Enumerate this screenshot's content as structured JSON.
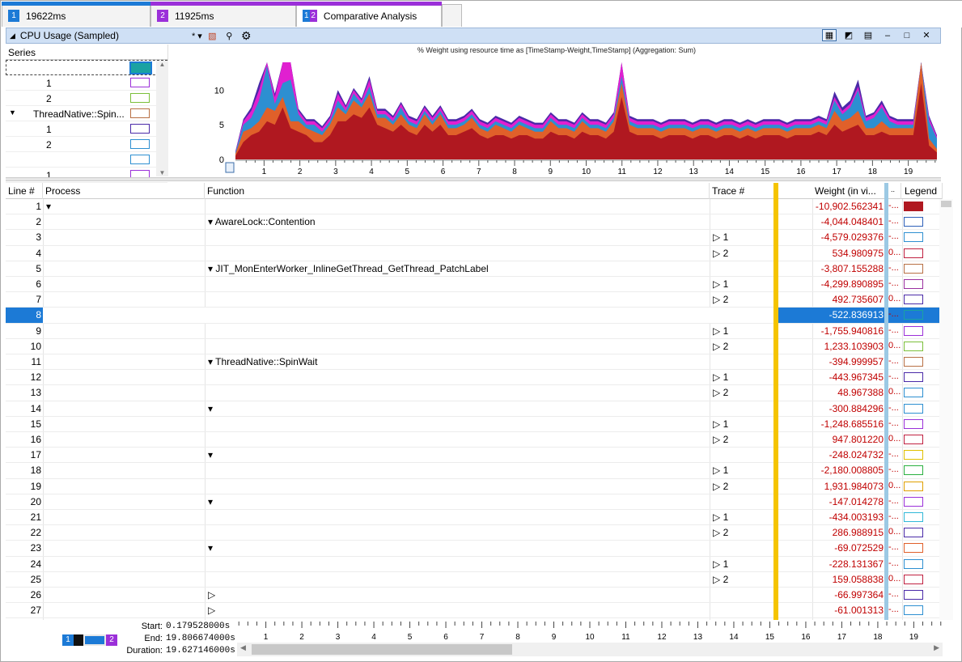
{
  "tabs": [
    {
      "num": "1",
      "label": "19622ms",
      "color": "#1c7ad6"
    },
    {
      "num": "2",
      "label": "11925ms",
      "color": "#9b30d9"
    },
    {
      "num": "1 2",
      "label": "Comparative Analysis",
      "color": "#9b30d9"
    }
  ],
  "panel": {
    "title": "CPU Usage (Sampled)",
    "preset": "*"
  },
  "series": {
    "header": "Series",
    "rows": [
      {
        "label": "",
        "swatch": "#1aa2a2",
        "indent": 0,
        "expander": false
      },
      {
        "label": "1",
        "swatch": "#9b30d9",
        "indent": 1,
        "expander": false
      },
      {
        "label": "2",
        "swatch": "#7bbf3a",
        "indent": 1,
        "expander": false
      },
      {
        "label": "ThreadNative::Spin...",
        "swatch": "#b87044",
        "indent": 0,
        "expander": true
      },
      {
        "label": "1",
        "swatch": "#4a2aa8",
        "indent": 1,
        "expander": false
      },
      {
        "label": "2",
        "swatch": "#2d8fd1",
        "indent": 1,
        "expander": false
      },
      {
        "label": "",
        "swatch": "#2d8fd1",
        "indent": 0,
        "expander": false
      },
      {
        "label": "1",
        "swatch": "#9b30d9",
        "indent": 1,
        "expander": false
      }
    ]
  },
  "chart_data": {
    "type": "area",
    "title": "% Weight using resource time as [TimeStamp-Weight,TimeStamp] (Aggregation: Sum)",
    "xlim": [
      0.2,
      19.8
    ],
    "ylim": [
      0,
      14
    ],
    "xticks": [
      "1",
      "2",
      "3",
      "4",
      "5",
      "6",
      "7",
      "8",
      "9",
      "10",
      "11",
      "12",
      "13",
      "14",
      "15",
      "16",
      "17",
      "18",
      "19"
    ],
    "yticks": [
      "0",
      "5",
      "10"
    ],
    "series": [
      {
        "color": "#b01820",
        "values": [
          0.5,
          2.5,
          3.5,
          4.0,
          5.5,
          5.0,
          7.5,
          4.5,
          4.0,
          3.5,
          2.5,
          2.5,
          3.5,
          5.5,
          5.5,
          6.5,
          6.0,
          7.5,
          5.0,
          4.5,
          4.0,
          5.0,
          4.0,
          3.5,
          5.0,
          4.0,
          5.0,
          3.5,
          3.5,
          4.0,
          4.5,
          3.5,
          3.0,
          3.5,
          3.5,
          3.0,
          3.5,
          3.5,
          3.0,
          3.0,
          4.0,
          3.5,
          3.5,
          3.0,
          4.0,
          3.5,
          3.5,
          3.0,
          4.0,
          9.0,
          4.0,
          3.5,
          3.5,
          3.5,
          3.0,
          3.5,
          3.5,
          3.5,
          3.0,
          3.5,
          3.5,
          3.0,
          3.5,
          3.5,
          3.0,
          3.5,
          3.0,
          3.5,
          3.5,
          3.5,
          3.0,
          3.5,
          3.5,
          3.5,
          4.0,
          3.5,
          5.0,
          4.0,
          4.5,
          5.0,
          3.5,
          3.5,
          4.0,
          3.5,
          3.5,
          3.5,
          3.5,
          11.0,
          2.0,
          1.0
        ]
      },
      {
        "color": "#e0602a",
        "values": [
          0.3,
          1.5,
          1.0,
          1.5,
          2.0,
          2.0,
          1.5,
          1.0,
          1.5,
          1.0,
          1.5,
          1.0,
          1.5,
          2.0,
          1.0,
          2.0,
          1.5,
          2.0,
          1.0,
          1.5,
          1.0,
          1.5,
          1.0,
          1.0,
          1.5,
          1.0,
          1.5,
          1.0,
          1.0,
          1.0,
          1.5,
          1.0,
          1.0,
          1.5,
          1.0,
          1.0,
          1.5,
          1.0,
          1.0,
          1.0,
          1.5,
          1.0,
          1.0,
          1.0,
          1.5,
          1.0,
          1.0,
          1.0,
          1.5,
          2.0,
          1.0,
          1.0,
          1.0,
          1.0,
          1.0,
          1.0,
          1.0,
          1.0,
          1.0,
          1.0,
          1.0,
          1.0,
          1.0,
          1.0,
          1.0,
          1.0,
          1.0,
          1.0,
          1.0,
          1.0,
          1.0,
          1.0,
          1.0,
          1.0,
          1.0,
          1.0,
          2.0,
          1.5,
          1.5,
          2.0,
          1.0,
          1.0,
          1.5,
          1.0,
          1.0,
          1.0,
          1.0,
          3.0,
          1.0,
          0.5
        ]
      },
      {
        "color": "#2d8fd1",
        "values": [
          0.2,
          1.0,
          1.5,
          3.0,
          6.0,
          1.0,
          2.0,
          6.0,
          1.0,
          0.5,
          1.0,
          0.5,
          0.5,
          1.0,
          0.5,
          1.0,
          0.5,
          1.0,
          0.5,
          0.5,
          0.5,
          1.0,
          0.5,
          0.5,
          0.5,
          0.5,
          0.5,
          0.5,
          0.5,
          0.5,
          0.5,
          0.5,
          0.5,
          0.5,
          0.5,
          0.5,
          0.5,
          0.5,
          0.5,
          0.5,
          0.5,
          0.5,
          0.5,
          0.5,
          0.5,
          0.5,
          0.5,
          0.5,
          0.5,
          1.0,
          0.5,
          0.5,
          0.5,
          0.5,
          0.5,
          0.5,
          0.5,
          0.5,
          0.5,
          0.5,
          0.5,
          0.5,
          0.5,
          0.5,
          0.5,
          0.5,
          0.5,
          0.5,
          0.5,
          0.5,
          0.5,
          0.5,
          0.5,
          0.5,
          0.5,
          0.5,
          1.5,
          1.0,
          1.5,
          3.0,
          1.0,
          1.5,
          2.0,
          1.0,
          0.5,
          0.5,
          0.5,
          0.5,
          2.5,
          1.5
        ]
      },
      {
        "color": "#e020d0",
        "values": [
          0.1,
          0.5,
          1.0,
          1.5,
          2.0,
          1.0,
          4.0,
          13.0,
          0.5,
          0.5,
          0.5,
          0.5,
          0.5,
          1.0,
          0.5,
          0.5,
          0.5,
          1.0,
          0.5,
          0.5,
          0.5,
          0.5,
          0.5,
          0.5,
          0.5,
          0.5,
          0.5,
          0.5,
          0.5,
          0.5,
          0.5,
          0.5,
          0.5,
          0.5,
          0.5,
          0.5,
          0.5,
          0.5,
          0.5,
          0.5,
          0.5,
          0.5,
          0.5,
          0.5,
          0.5,
          0.5,
          0.5,
          0.5,
          0.5,
          3.0,
          0.5,
          0.5,
          0.5,
          0.5,
          0.5,
          0.5,
          0.5,
          0.5,
          0.5,
          0.5,
          0.5,
          0.5,
          0.5,
          0.5,
          0.5,
          0.5,
          0.5,
          0.5,
          0.5,
          0.5,
          0.5,
          0.5,
          0.5,
          0.5,
          0.5,
          0.5,
          0.5,
          0.5,
          0.5,
          0.5,
          0.5,
          0.5,
          0.5,
          0.5,
          0.5,
          0.5,
          0.5,
          1.0,
          0.5,
          0.3
        ]
      },
      {
        "color": "#4a2aa8",
        "values": [
          0.1,
          0.3,
          0.5,
          1.0,
          1.0,
          0.5,
          0.8,
          1.0,
          0.3,
          0.3,
          0.3,
          0.3,
          0.3,
          0.5,
          0.3,
          0.3,
          0.3,
          0.5,
          0.3,
          0.3,
          0.3,
          0.3,
          0.3,
          0.3,
          0.3,
          0.3,
          0.3,
          0.3,
          0.3,
          0.3,
          0.3,
          0.3,
          0.3,
          0.3,
          0.3,
          0.3,
          0.3,
          0.3,
          0.3,
          0.3,
          0.3,
          0.3,
          0.3,
          0.3,
          0.3,
          0.3,
          0.3,
          0.3,
          0.3,
          1.0,
          0.3,
          0.3,
          0.3,
          0.3,
          0.3,
          0.3,
          0.3,
          0.3,
          0.3,
          0.3,
          0.3,
          0.3,
          0.3,
          0.3,
          0.3,
          0.3,
          0.3,
          0.3,
          0.3,
          0.3,
          0.3,
          0.3,
          0.3,
          0.3,
          0.3,
          0.3,
          0.8,
          0.5,
          0.5,
          1.0,
          0.3,
          0.3,
          0.5,
          0.3,
          0.3,
          0.3,
          0.3,
          0.5,
          0.3,
          0.2
        ]
      }
    ]
  },
  "table": {
    "columns": {
      "line": "Line #",
      "process": "Process",
      "function": "Function",
      "trace": "Trace #",
      "weight": "Weight (in vi...",
      "dots": "..",
      "legend": "Legend"
    },
    "rows": [
      {
        "n": "1",
        "proc": "▾",
        "func": "",
        "trace": "",
        "w": "-10,902.562341",
        "d": "-...",
        "c": "#b01820",
        "fill": true
      },
      {
        "n": "2",
        "proc": "",
        "func": "▾ AwareLock::Contention",
        "trace": "",
        "w": "-4,044.048401",
        "d": "-...",
        "c": "#2d5fb8"
      },
      {
        "n": "3",
        "proc": "",
        "func": "",
        "trace": "▷ 1",
        "w": "-4,579.029376",
        "d": "-...",
        "c": "#2d8fd1"
      },
      {
        "n": "4",
        "proc": "",
        "func": "",
        "trace": "▷ 2",
        "w": "534.980975",
        "d": "0...",
        "c": "#c02040"
      },
      {
        "n": "5",
        "proc": "",
        "func": "▾ JIT_MonEnterWorker_InlineGetThread_GetThread_PatchLabel",
        "trace": "",
        "w": "-3,807.155288",
        "d": "-...",
        "c": "#b87044"
      },
      {
        "n": "6",
        "proc": "",
        "func": "",
        "trace": "▷ 1",
        "w": "-4,299.890895",
        "d": "-...",
        "c": "#9b30a0"
      },
      {
        "n": "7",
        "proc": "",
        "func": "",
        "trace": "▷ 2",
        "w": "492.735607",
        "d": "0...",
        "c": "#4a2aa8"
      },
      {
        "n": "8",
        "proc": "",
        "func": "",
        "trace": "",
        "w": "-522.836913",
        "d": "-...",
        "c": "#1aa2a2",
        "sel": true
      },
      {
        "n": "9",
        "proc": "",
        "func": "",
        "trace": "▷ 1",
        "w": "-1,755.940816",
        "d": "-...",
        "c": "#9b30d9"
      },
      {
        "n": "10",
        "proc": "",
        "func": "",
        "trace": "▷ 2",
        "w": "1,233.103903",
        "d": "0...",
        "c": "#7bbf3a"
      },
      {
        "n": "11",
        "proc": "",
        "func": "▾ ThreadNative::SpinWait",
        "trace": "",
        "w": "-394.999957",
        "d": "-...",
        "c": "#b87044"
      },
      {
        "n": "12",
        "proc": "",
        "func": "",
        "trace": "▷ 1",
        "w": "-443.967345",
        "d": "-...",
        "c": "#4a2aa8"
      },
      {
        "n": "13",
        "proc": "",
        "func": "",
        "trace": "▷ 2",
        "w": "48.967388",
        "d": "0...",
        "c": "#2d8fd1"
      },
      {
        "n": "14",
        "proc": "",
        "func": "▾",
        "trace": "",
        "w": "-300.884296",
        "d": "-...",
        "c": "#2d8fd1"
      },
      {
        "n": "15",
        "proc": "",
        "func": "",
        "trace": "▷ 1",
        "w": "-1,248.685516",
        "d": "-...",
        "c": "#9b30d9"
      },
      {
        "n": "16",
        "proc": "",
        "func": "",
        "trace": "▷ 2",
        "w": "947.801220",
        "d": "0...",
        "c": "#c02040"
      },
      {
        "n": "17",
        "proc": "",
        "func": "▾",
        "trace": "",
        "w": "-248.024732",
        "d": "-...",
        "c": "#e0c000"
      },
      {
        "n": "18",
        "proc": "",
        "func": "",
        "trace": "▷ 1",
        "w": "-2,180.008805",
        "d": "-...",
        "c": "#2ab040"
      },
      {
        "n": "19",
        "proc": "",
        "func": "",
        "trace": "▷ 2",
        "w": "1,931.984073",
        "d": "0...",
        "c": "#e0a000"
      },
      {
        "n": "20",
        "proc": "",
        "func": "▾",
        "trace": "",
        "w": "-147.014278",
        "d": "-...",
        "c": "#9b30d9"
      },
      {
        "n": "21",
        "proc": "",
        "func": "",
        "trace": "▷ 1",
        "w": "-434.003193",
        "d": "-...",
        "c": "#30b8d8"
      },
      {
        "n": "22",
        "proc": "",
        "func": "",
        "trace": "▷ 2",
        "w": "286.988915",
        "d": "0...",
        "c": "#4a2aa8"
      },
      {
        "n": "23",
        "proc": "",
        "func": "▾",
        "trace": "",
        "w": "-69.072529",
        "d": "-...",
        "c": "#e0602a"
      },
      {
        "n": "24",
        "proc": "",
        "func": "",
        "trace": "▷ 1",
        "w": "-228.131367",
        "d": "-...",
        "c": "#2d8fd1"
      },
      {
        "n": "25",
        "proc": "",
        "func": "",
        "trace": "▷ 2",
        "w": "159.058838",
        "d": "0...",
        "c": "#c02040"
      },
      {
        "n": "26",
        "proc": "",
        "func": "▷",
        "trace": "",
        "w": "-66.997364",
        "d": "-...",
        "c": "#4a2aa8"
      },
      {
        "n": "27",
        "proc": "",
        "func": "▷",
        "trace": "",
        "w": "-61.001313",
        "d": "-...",
        "c": "#2d8fd1"
      }
    ]
  },
  "timeline": {
    "start_label": "Start:",
    "start": "0.179528000s",
    "end_label": "End:",
    "end": "19.806674000s",
    "duration_label": "Duration:",
    "duration": "19.627146000s",
    "legend1": "1",
    "legend2": "2"
  }
}
